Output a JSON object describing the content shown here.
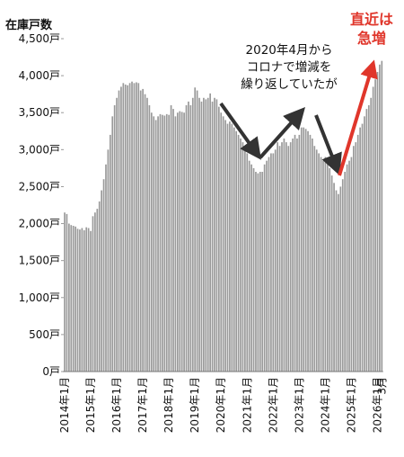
{
  "chart_data": {
    "type": "bar",
    "y_axis_label": "在庫戸数",
    "annotation_lines": [
      "2020年4月から",
      "コロナで増減を",
      "繰り返していたが"
    ],
    "highlight_lines": [
      "直近は",
      "急増"
    ],
    "color": "#9a9a9a",
    "categories": [
      "2014年1月",
      null,
      null,
      null,
      null,
      null,
      null,
      null,
      null,
      null,
      null,
      null,
      "2015年1月",
      null,
      null,
      null,
      null,
      null,
      null,
      null,
      null,
      null,
      null,
      null,
      "2016年1月",
      null,
      null,
      null,
      null,
      null,
      null,
      null,
      null,
      null,
      null,
      null,
      "2017年1月",
      null,
      null,
      null,
      null,
      null,
      null,
      null,
      null,
      null,
      null,
      null,
      "2018年1月",
      null,
      null,
      null,
      null,
      null,
      null,
      null,
      null,
      null,
      null,
      null,
      "2019年1月",
      null,
      null,
      null,
      null,
      null,
      null,
      null,
      null,
      null,
      null,
      null,
      "2020年1月",
      null,
      null,
      null,
      null,
      null,
      null,
      null,
      null,
      null,
      null,
      null,
      "2021年1月",
      null,
      null,
      null,
      null,
      null,
      null,
      null,
      null,
      null,
      null,
      null,
      "2022年1月",
      null,
      null,
      null,
      null,
      null,
      null,
      null,
      null,
      null,
      null,
      null,
      "2023年1月",
      null,
      null,
      null,
      null,
      null,
      null,
      null,
      null,
      null,
      null,
      null,
      "2024年1月",
      null,
      null,
      null,
      null,
      null,
      null,
      null,
      null,
      null,
      null,
      null,
      "2025年1月",
      null,
      null,
      null,
      null,
      null,
      null,
      null,
      null,
      null,
      null,
      null,
      "2026年1月",
      null,
      "3月"
    ],
    "values": [
      2150,
      2130,
      2000,
      1980,
      1970,
      1960,
      1930,
      1920,
      1940,
      1910,
      1950,
      1940,
      1900,
      2100,
      2150,
      2200,
      2300,
      2450,
      2600,
      2800,
      3000,
      3200,
      3450,
      3600,
      3700,
      3800,
      3850,
      3900,
      3880,
      3870,
      3900,
      3920,
      3900,
      3910,
      3900,
      3800,
      3820,
      3750,
      3700,
      3600,
      3500,
      3450,
      3400,
      3450,
      3480,
      3470,
      3460,
      3480,
      3470,
      3600,
      3550,
      3450,
      3500,
      3520,
      3510,
      3500,
      3600,
      3650,
      3600,
      3700,
      3840,
      3800,
      3700,
      3650,
      3700,
      3680,
      3700,
      3760,
      3650,
      3700,
      3680,
      3580,
      3500,
      3450,
      3400,
      3350,
      3380,
      3350,
      3300,
      3250,
      3200,
      3150,
      3100,
      3000,
      2950,
      2850,
      2800,
      2750,
      2700,
      2680,
      2700,
      2700,
      2800,
      2850,
      2900,
      2950,
      2950,
      3000,
      3100,
      3050,
      3100,
      3150,
      3100,
      3050,
      3100,
      3150,
      3200,
      3150,
      3200,
      3300,
      3300,
      3280,
      3250,
      3200,
      3150,
      3050,
      3000,
      2950,
      2900,
      2850,
      2900,
      2850,
      2750,
      2650,
      2550,
      2450,
      2400,
      2500,
      2600,
      2700,
      2800,
      2850,
      2900,
      3050,
      3100,
      3200,
      3300,
      3350,
      3450,
      3550,
      3600,
      3700,
      3850,
      3950,
      4050,
      4150,
      4200
    ],
    "ylim": [
      0,
      4500
    ],
    "yticks": [
      {
        "value": 0,
        "label": "0戸"
      },
      {
        "value": 500,
        "label": "500戸"
      },
      {
        "value": 1000,
        "label": "1,000戸"
      },
      {
        "value": 1500,
        "label": "1,500戸"
      },
      {
        "value": 2000,
        "label": "2,000戸"
      },
      {
        "value": 2500,
        "label": "2,500戸"
      },
      {
        "value": 3000,
        "label": "3,000戸"
      },
      {
        "value": 3500,
        "label": "3,500戸"
      },
      {
        "value": 4000,
        "label": "4,000戸"
      },
      {
        "value": 4500,
        "label": "4,500戸"
      }
    ]
  }
}
